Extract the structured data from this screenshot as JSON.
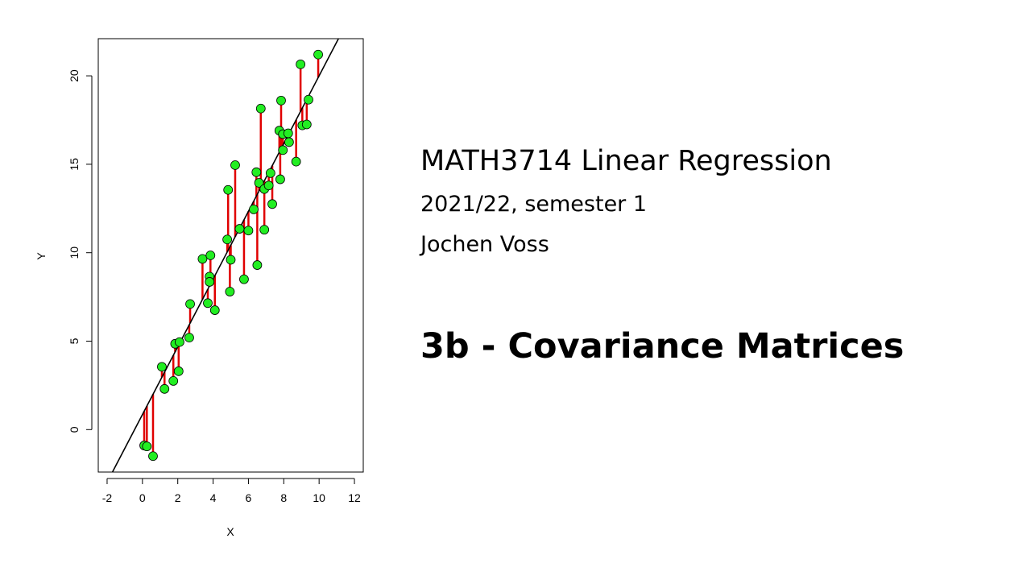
{
  "slide": {
    "course_title": "MATH3714 Linear Regression",
    "semester": "2021/22, semester 1",
    "author": "Jochen Voss",
    "lecture_title": "3b - Covariance Matrices"
  },
  "chart_data": {
    "type": "scatter",
    "xlabel": "X",
    "ylabel": "Y",
    "xlim": [
      -2.5,
      12.5
    ],
    "ylim": [
      -2.4,
      22.1
    ],
    "xticks": [
      -2,
      0,
      2,
      4,
      6,
      8,
      10,
      12
    ],
    "yticks": [
      0,
      5,
      10,
      15,
      20
    ],
    "grid": false,
    "colors": {
      "points": "#22ee22",
      "residuals": "#e00000",
      "line": "#000000"
    },
    "regression_line": {
      "intercept": 0.85,
      "slope": 1.915
    },
    "points": [
      {
        "x": 0.1,
        "y": -0.9
      },
      {
        "x": 0.25,
        "y": -0.95
      },
      {
        "x": 0.6,
        "y": -1.5
      },
      {
        "x": 1.1,
        "y": 3.55
      },
      {
        "x": 1.25,
        "y": 2.3
      },
      {
        "x": 1.75,
        "y": 2.75
      },
      {
        "x": 1.85,
        "y": 4.85
      },
      {
        "x": 2.05,
        "y": 3.3
      },
      {
        "x": 2.1,
        "y": 4.95
      },
      {
        "x": 2.65,
        "y": 5.2
      },
      {
        "x": 2.7,
        "y": 7.1
      },
      {
        "x": 3.4,
        "y": 9.65
      },
      {
        "x": 3.7,
        "y": 7.15
      },
      {
        "x": 3.8,
        "y": 8.65
      },
      {
        "x": 3.8,
        "y": 8.35
      },
      {
        "x": 3.85,
        "y": 9.85
      },
      {
        "x": 4.1,
        "y": 6.75
      },
      {
        "x": 4.8,
        "y": 10.75
      },
      {
        "x": 4.85,
        "y": 13.55
      },
      {
        "x": 4.95,
        "y": 7.8
      },
      {
        "x": 5.0,
        "y": 9.6
      },
      {
        "x": 5.25,
        "y": 14.95
      },
      {
        "x": 5.5,
        "y": 11.35
      },
      {
        "x": 5.75,
        "y": 8.5
      },
      {
        "x": 6.0,
        "y": 11.25
      },
      {
        "x": 6.3,
        "y": 12.45
      },
      {
        "x": 6.45,
        "y": 14.55
      },
      {
        "x": 6.5,
        "y": 9.3
      },
      {
        "x": 6.6,
        "y": 13.95
      },
      {
        "x": 6.7,
        "y": 18.15
      },
      {
        "x": 6.9,
        "y": 13.6
      },
      {
        "x": 6.9,
        "y": 11.3
      },
      {
        "x": 7.15,
        "y": 13.8
      },
      {
        "x": 7.25,
        "y": 14.5
      },
      {
        "x": 7.35,
        "y": 12.75
      },
      {
        "x": 7.75,
        "y": 16.9
      },
      {
        "x": 7.8,
        "y": 14.15
      },
      {
        "x": 7.85,
        "y": 18.6
      },
      {
        "x": 7.95,
        "y": 16.7
      },
      {
        "x": 7.95,
        "y": 15.8
      },
      {
        "x": 8.25,
        "y": 16.75
      },
      {
        "x": 8.3,
        "y": 16.25
      },
      {
        "x": 8.7,
        "y": 15.15
      },
      {
        "x": 8.95,
        "y": 20.65
      },
      {
        "x": 9.05,
        "y": 17.2
      },
      {
        "x": 9.3,
        "y": 17.25
      },
      {
        "x": 9.4,
        "y": 18.65
      },
      {
        "x": 9.95,
        "y": 21.2
      }
    ]
  }
}
